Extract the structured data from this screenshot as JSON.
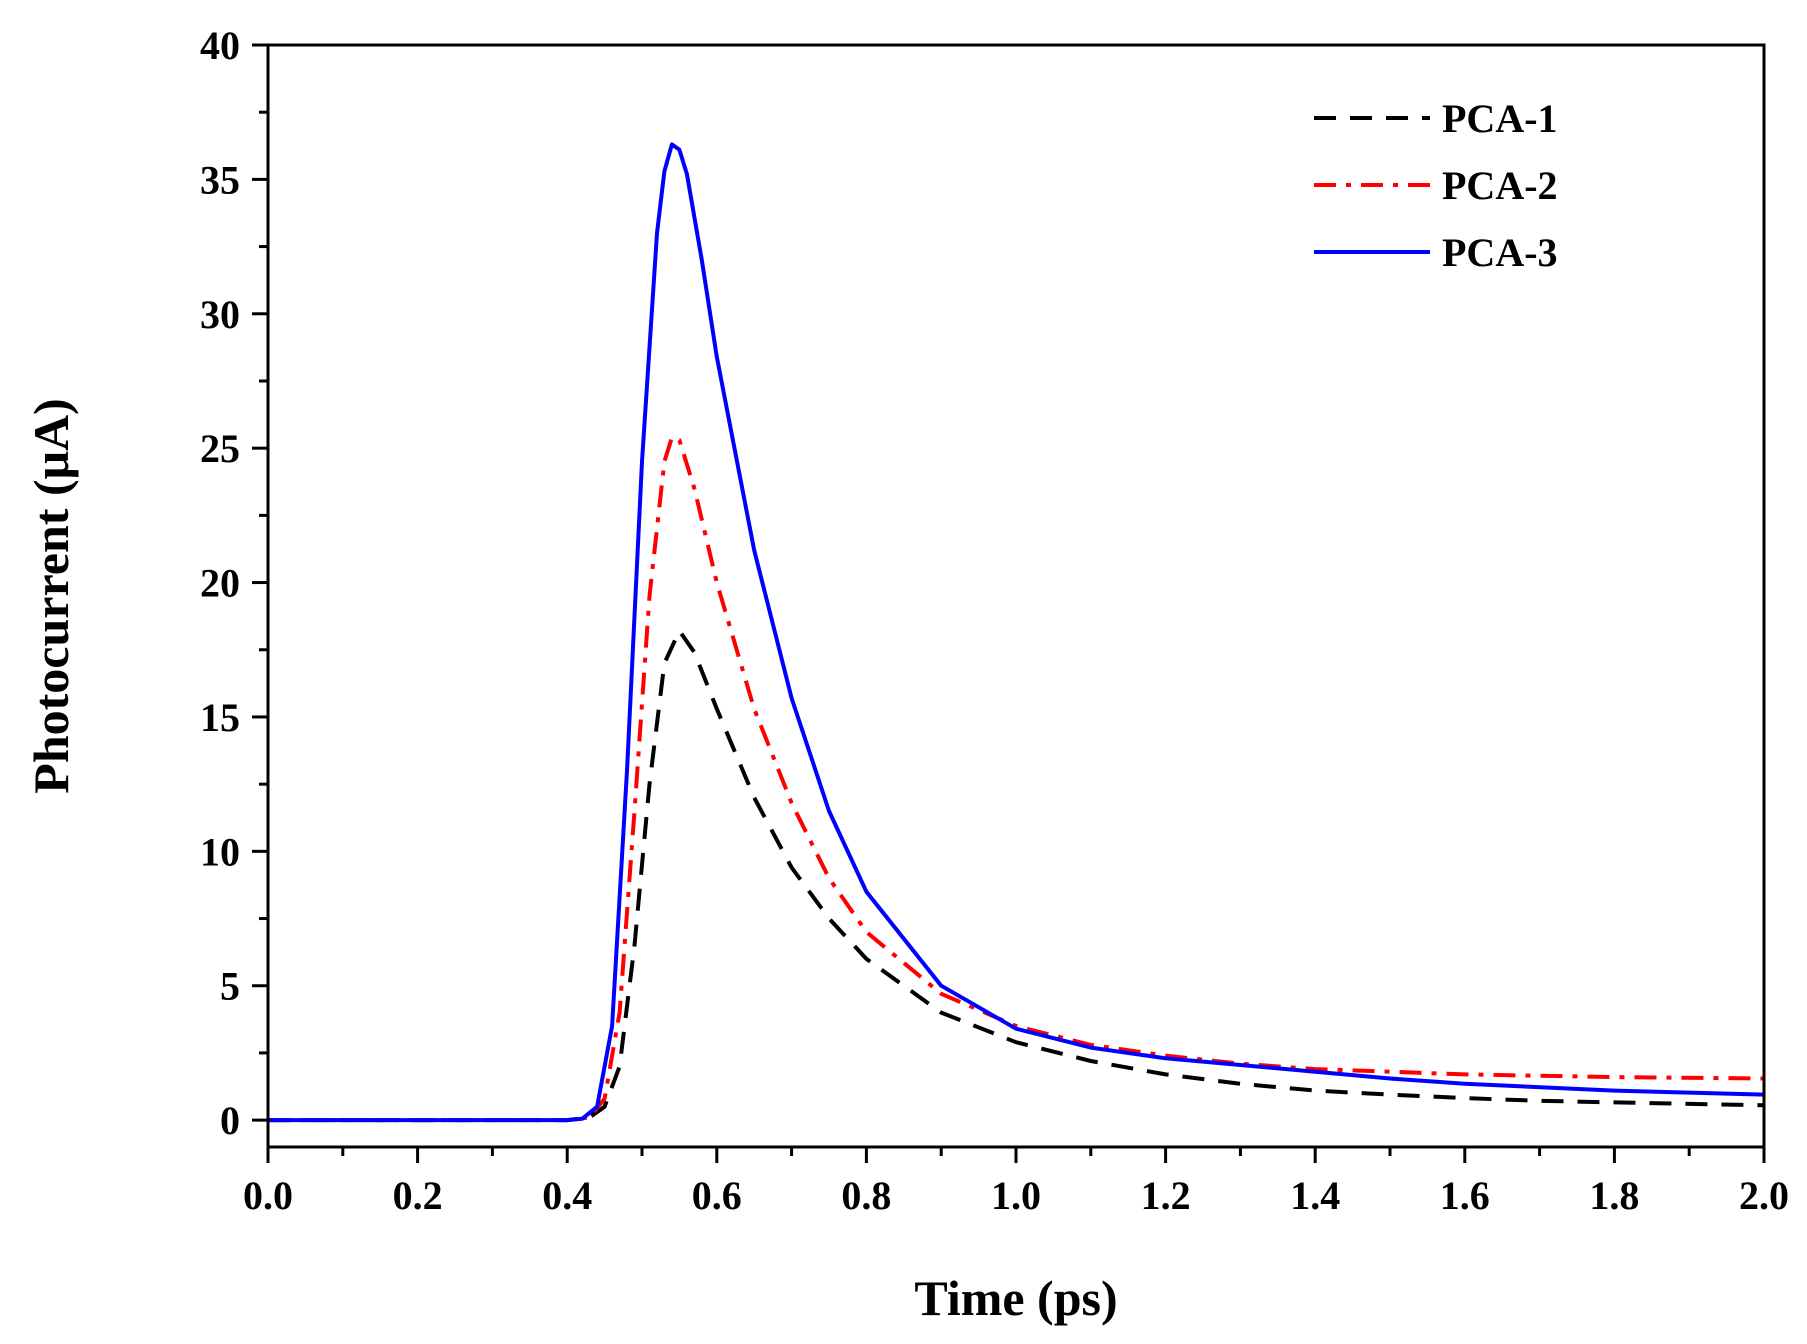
{
  "chart_data": {
    "type": "line",
    "title": "",
    "xlabel": "Time (ps)",
    "ylabel": "Photocurrent (μA)",
    "xlim": [
      0.0,
      2.0
    ],
    "ylim": [
      -1,
      40
    ],
    "xticks": [
      "0.0",
      "0.2",
      "0.4",
      "0.6",
      "0.8",
      "1.0",
      "1.2",
      "1.4",
      "1.6",
      "1.8",
      "2.0"
    ],
    "yticks": [
      "0",
      "5",
      "10",
      "15",
      "20",
      "25",
      "30",
      "35",
      "40"
    ],
    "grid": false,
    "legend_position": "top-right",
    "series": [
      {
        "name": "PCA-1",
        "color": "#000000",
        "style": "dashed",
        "x": [
          0.0,
          0.4,
          0.43,
          0.45,
          0.47,
          0.49,
          0.51,
          0.53,
          0.55,
          0.57,
          0.6,
          0.65,
          0.7,
          0.75,
          0.8,
          0.9,
          1.0,
          1.1,
          1.2,
          1.3,
          1.4,
          1.5,
          1.6,
          1.7,
          1.8,
          2.0
        ],
        "y": [
          0.0,
          0.0,
          0.1,
          0.5,
          2.0,
          6.5,
          12.5,
          17.0,
          18.2,
          17.4,
          15.3,
          12.0,
          9.4,
          7.5,
          6.0,
          4.0,
          2.9,
          2.2,
          1.7,
          1.35,
          1.1,
          0.95,
          0.82,
          0.72,
          0.66,
          0.55
        ]
      },
      {
        "name": "PCA-2",
        "color": "#ff0000",
        "style": "dash-dot",
        "x": [
          0.0,
          0.4,
          0.43,
          0.45,
          0.47,
          0.49,
          0.51,
          0.53,
          0.54,
          0.55,
          0.57,
          0.6,
          0.65,
          0.7,
          0.75,
          0.8,
          0.9,
          1.0,
          1.1,
          1.2,
          1.3,
          1.4,
          1.5,
          1.6,
          1.8,
          2.0
        ],
        "y": [
          0.0,
          0.0,
          0.1,
          0.8,
          4.0,
          11.5,
          19.5,
          24.5,
          25.4,
          25.3,
          23.5,
          20.0,
          15.3,
          11.8,
          9.0,
          7.0,
          4.7,
          3.5,
          2.8,
          2.4,
          2.1,
          1.9,
          1.8,
          1.7,
          1.6,
          1.55
        ]
      },
      {
        "name": "PCA-3",
        "color": "#0000ff",
        "style": "solid",
        "x": [
          0.0,
          0.4,
          0.42,
          0.44,
          0.46,
          0.48,
          0.5,
          0.52,
          0.53,
          0.54,
          0.55,
          0.56,
          0.58,
          0.6,
          0.65,
          0.7,
          0.75,
          0.8,
          0.9,
          1.0,
          1.1,
          1.2,
          1.3,
          1.4,
          1.5,
          1.6,
          1.8,
          2.0
        ],
        "y": [
          0.0,
          0.0,
          0.05,
          0.5,
          3.5,
          13.0,
          24.5,
          33.0,
          35.3,
          36.3,
          36.1,
          35.2,
          32.0,
          28.4,
          21.2,
          15.7,
          11.5,
          8.5,
          5.0,
          3.4,
          2.7,
          2.3,
          2.05,
          1.8,
          1.55,
          1.35,
          1.1,
          0.95
        ]
      }
    ]
  }
}
